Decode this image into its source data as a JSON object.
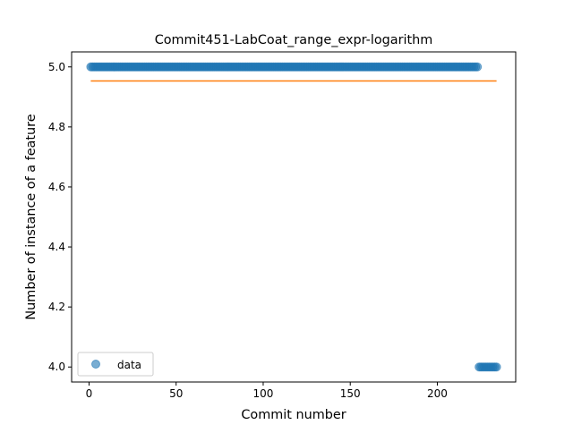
{
  "chart_data": {
    "type": "scatter",
    "title": "Commit451-LabCoat_range_expr-logarithm",
    "xlabel": "Commit number",
    "ylabel": "Number of instance of a feature",
    "xlim": [
      -10,
      245
    ],
    "ylim": [
      3.95,
      5.05
    ],
    "x_ticks": [
      0,
      50,
      100,
      150,
      200
    ],
    "x_tick_labels": [
      "0",
      "50",
      "100",
      "150",
      "200"
    ],
    "y_ticks": [
      4.0,
      4.2,
      4.4,
      4.6,
      4.8,
      5.0
    ],
    "y_tick_labels": [
      "4.0",
      "4.2",
      "4.4",
      "4.6",
      "4.8",
      "5.0"
    ],
    "grid": false,
    "legend": {
      "placement": "lower-left",
      "entries": [
        "data"
      ]
    },
    "series": [
      {
        "name": "data",
        "kind": "points",
        "color": "#1f77b4",
        "segments": [
          {
            "x_start": 1,
            "x_end": 223,
            "y": 5.0
          },
          {
            "x_start": 224,
            "x_end": 234,
            "y": 4.0
          }
        ]
      },
      {
        "kind": "line",
        "color": "#ff7f0e",
        "x": [
          1,
          234
        ],
        "y": [
          4.953,
          4.953
        ]
      }
    ]
  }
}
